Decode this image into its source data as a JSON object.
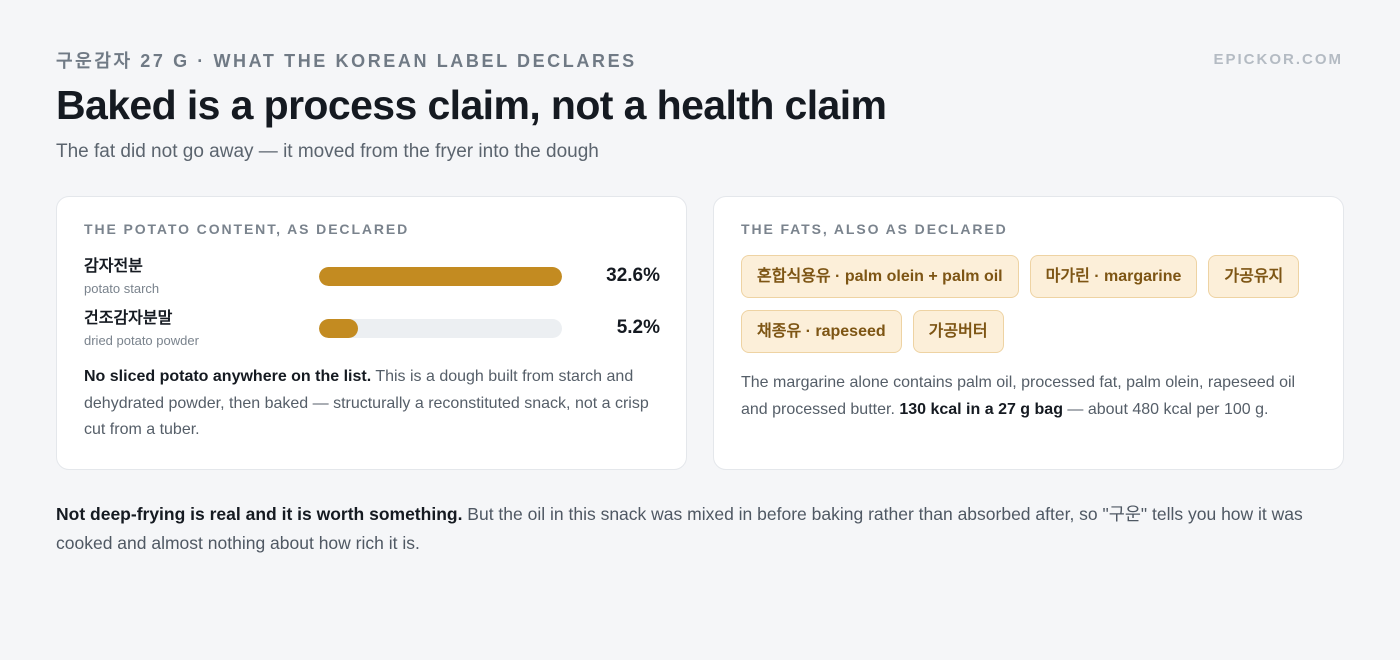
{
  "header": {
    "eyebrow": "구운감자 27 G · WHAT THE KOREAN LABEL DECLARES",
    "domain": "EPICKOR.COM",
    "title": "Baked is a process claim, not a health claim",
    "subtitle": "The fat did not go away — it moved from the fryer into the dough"
  },
  "potato_card": {
    "heading": "THE POTATO CONTENT, AS DECLARED",
    "rows": [
      {
        "name": "감자전분",
        "sub": "potato starch",
        "value": "32.6%",
        "percent": 32.6
      },
      {
        "name": "건조감자분말",
        "sub": "dried potato powder",
        "value": "5.2%",
        "percent": 5.2
      }
    ],
    "bar_scale_max_percent": 32.6,
    "note_strong": "No sliced potato anywhere on the list.",
    "note_rest": " This is a dough built from starch and dehydrated powder, then baked — structurally a reconstituted snack, not a crisp cut from a tuber."
  },
  "fats_card": {
    "heading": "THE FATS, ALSO AS DECLARED",
    "chips": [
      "혼합식용유 · palm olein + palm oil",
      "마가린 · margarine",
      "가공유지",
      "채종유 · rapeseed",
      "가공버터"
    ],
    "note_before": "The margarine alone contains palm oil, processed fat, palm olein, rapeseed oil and processed butter. ",
    "note_strong": "130 kcal in a 27 g bag",
    "note_after": " — about 480 kcal per 100 g."
  },
  "footer": {
    "strong": "Not deep-frying is real and it is worth something.",
    "rest": " But the oil in this snack was mixed in before baking rather than absorbed after, so \"구운\" tells you how it was cooked and almost nothing about how rich it is."
  },
  "colors": {
    "accent_bar": "#c38b21",
    "chip_background": "#fcefd9",
    "chip_text": "#7d5514",
    "page_background": "#f5f6f8"
  }
}
